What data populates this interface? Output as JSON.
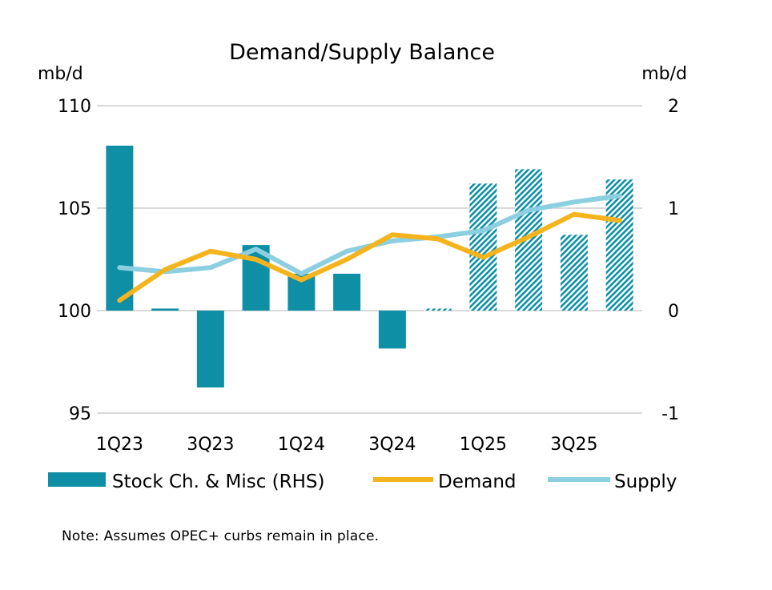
{
  "chart_data": {
    "type": "bar+line",
    "title": "Demand/Supply Balance",
    "ylabel_left": "mb/d",
    "ylabel_right": "mb/d",
    "ylim_left": [
      95,
      110
    ],
    "yticks_left": [
      "110",
      "105",
      "100",
      "95"
    ],
    "ylim_right": [
      -1,
      2
    ],
    "yticks_right": [
      "2",
      "1",
      "0",
      "-1"
    ],
    "categories": [
      "1Q23",
      "2Q23",
      "3Q23",
      "4Q23",
      "1Q24",
      "2Q24",
      "3Q24",
      "4Q24",
      "1Q25",
      "2Q25",
      "3Q25",
      "4Q25"
    ],
    "xtick_labels": [
      "1Q23",
      "3Q23",
      "1Q24",
      "3Q24",
      "1Q25",
      "3Q25"
    ],
    "series": [
      {
        "name": "Stock Ch. & Misc (RHS)",
        "kind": "bar",
        "axis": "right",
        "color": "#0e8fa5",
        "values": [
          1.61,
          0.02,
          -0.75,
          0.64,
          0.36,
          0.36,
          -0.37,
          0.02,
          1.24,
          1.38,
          0.74,
          1.28
        ],
        "forecast": [
          false,
          false,
          false,
          false,
          false,
          false,
          false,
          true,
          true,
          true,
          true,
          true
        ]
      },
      {
        "name": "Demand",
        "kind": "line",
        "axis": "left",
        "color": "#f5b41e",
        "values": [
          100.5,
          102.0,
          102.9,
          102.5,
          101.5,
          102.5,
          103.7,
          103.5,
          102.6,
          103.6,
          104.7,
          104.4
        ]
      },
      {
        "name": "Supply",
        "kind": "line",
        "axis": "left",
        "color": "#8ccfe0",
        "values": [
          102.1,
          101.9,
          102.1,
          103.0,
          101.8,
          102.9,
          103.4,
          103.6,
          103.9,
          104.9,
          105.3,
          105.6
        ]
      }
    ],
    "legend": [
      "Stock Ch. & Misc (RHS)",
      "Demand",
      "Supply"
    ],
    "legend_position": "bottom",
    "grid": true
  },
  "note": "Note: Assumes OPEC+ curbs remain in place."
}
